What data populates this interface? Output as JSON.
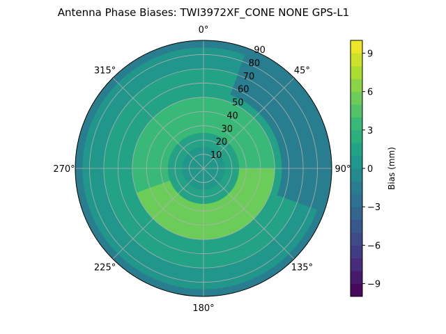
{
  "chart_data": {
    "type": "heatmap",
    "projection": "polar",
    "title": "Antenna Phase Biases: TWI3972XF_CONE  NONE GPS-L1",
    "angular_ticks": [
      "0°",
      "45°",
      "90°",
      "135°",
      "180°",
      "225°",
      "270°",
      "315°"
    ],
    "angular_tick_values": [
      0,
      45,
      90,
      135,
      180,
      225,
      270,
      315
    ],
    "radial_ticks": [
      "10",
      "20",
      "30",
      "40",
      "50",
      "60",
      "70",
      "80",
      "90"
    ],
    "radial_tick_values": [
      10,
      20,
      30,
      40,
      50,
      60,
      70,
      80,
      90
    ],
    "radial_range": [
      0,
      90
    ],
    "grid": true,
    "colorbar": {
      "label": "Bias (mm)",
      "range": [
        -10,
        10
      ],
      "tick_values": [
        -9,
        -6,
        -3,
        0,
        3,
        6,
        9
      ],
      "tick_labels": [
        "−9",
        "−6",
        "−3",
        "0",
        "3",
        "6",
        "9"
      ],
      "levels": 20,
      "colormap": "viridis"
    },
    "regions": [
      {
        "zenith_range": [
          0,
          15
        ],
        "azimuth_range": [
          0,
          360
        ],
        "bias_mm": 0.5
      },
      {
        "zenith_range": [
          15,
          25
        ],
        "azimuth_range": [
          0,
          360
        ],
        "bias_mm": 1.5
      },
      {
        "zenith_range": [
          25,
          50
        ],
        "azimuth_range": [
          0,
          360
        ],
        "bias_mm": 3.5
      },
      {
        "zenith_range": [
          25,
          55
        ],
        "azimuth_range": [
          90,
          250
        ],
        "bias_mm": 5.5
      },
      {
        "zenith_range": [
          50,
          70
        ],
        "azimuth_range": [
          0,
          360
        ],
        "bias_mm": 1.5
      },
      {
        "zenith_range": [
          70,
          85
        ],
        "azimuth_range": [
          0,
          360
        ],
        "bias_mm": 0.0
      },
      {
        "zenith_range": [
          85,
          90
        ],
        "azimuth_range": [
          0,
          360
        ],
        "bias_mm": -1.5
      },
      {
        "zenith_range": [
          55,
          90
        ],
        "azimuth_range": [
          20,
          110
        ],
        "bias_mm": -2.0
      }
    ]
  }
}
